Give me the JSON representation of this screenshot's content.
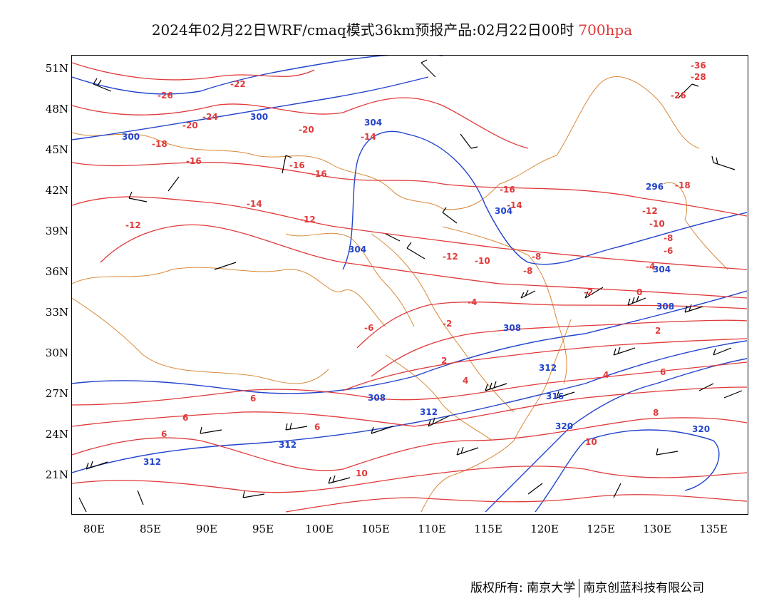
{
  "title": {
    "main": "2024年02月22日WRF/cmaq模式36km预报产品:02月22日00时",
    "level": "700hpa"
  },
  "axes": {
    "lat_labels": [
      "51N",
      "48N",
      "45N",
      "42N",
      "39N",
      "36N",
      "33N",
      "30N",
      "27N",
      "24N",
      "21N"
    ],
    "lon_labels": [
      "80E",
      "85E",
      "90E",
      "95E",
      "100E",
      "105E",
      "110E",
      "115E",
      "120E",
      "125E",
      "130E",
      "135E"
    ]
  },
  "colors": {
    "temperature_contour": "#e03a3a",
    "height_contour": "#2244cc",
    "wind_barb": "#000000",
    "boundary": "#d9893a"
  },
  "temperature_labels": [
    "-36",
    "-28",
    "-26",
    "-26",
    "-24",
    "-22",
    "-20",
    "-20",
    "-18",
    "-18",
    "-16",
    "-16",
    "-16",
    "-16",
    "-14",
    "-14",
    "-14",
    "-12",
    "-12",
    "-12",
    "-12",
    "-10",
    "-10",
    "-8",
    "-8",
    "-8",
    "-6",
    "-6",
    "-4",
    "-4",
    "-2",
    "-2",
    "0",
    "2",
    "2",
    "4",
    "4",
    "6",
    "6",
    "6",
    "6",
    "6",
    "8",
    "10",
    "10"
  ],
  "height_labels": [
    "296",
    "300",
    "300",
    "304",
    "304",
    "304",
    "304",
    "308",
    "308",
    "308",
    "312",
    "312",
    "312",
    "312",
    "316",
    "320",
    "320"
  ],
  "footer": {
    "copyright": "版权所有: 南京大学",
    "company": "南京创蓝科技有限公司"
  }
}
